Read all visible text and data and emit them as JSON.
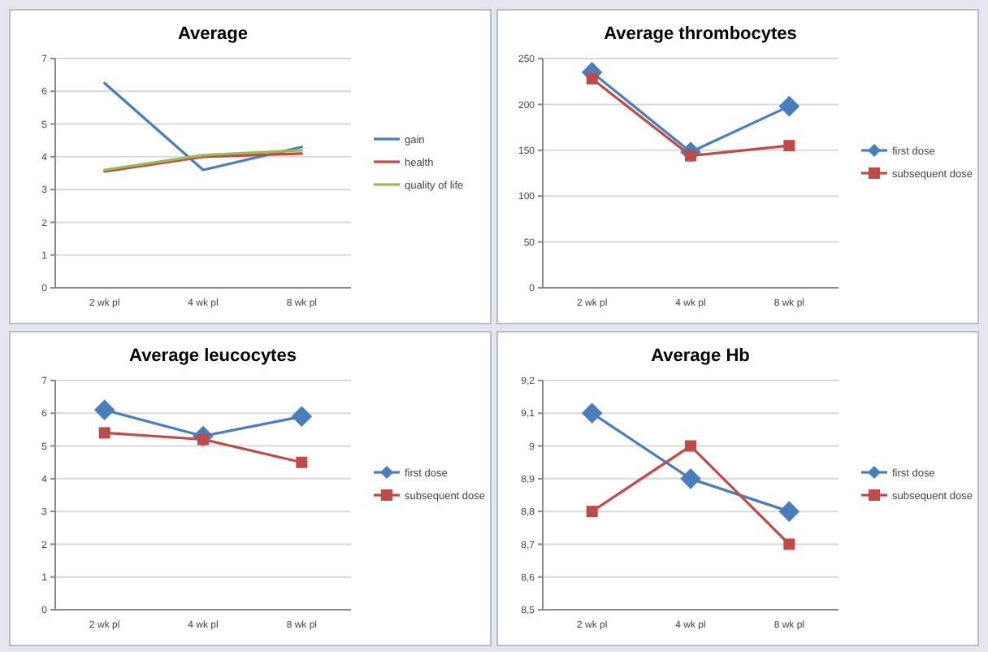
{
  "chart_data": [
    {
      "type": "line",
      "title": "Average",
      "categories": [
        "2 wk pl",
        "4 wk pl",
        "8 wk pl"
      ],
      "ylim": [
        0,
        7
      ],
      "yticks": [
        0,
        1,
        2,
        3,
        4,
        5,
        6,
        7
      ],
      "grid": "y",
      "legend": "right",
      "marker": "none",
      "series": [
        {
          "name": "gain",
          "color": "#4a7ebb",
          "values": [
            6.25,
            3.6,
            4.3
          ]
        },
        {
          "name": "health",
          "color": "#be4b48",
          "values": [
            3.55,
            4.0,
            4.1
          ]
        },
        {
          "name": "quality of life",
          "color": "#98b954",
          "values": [
            3.6,
            4.05,
            4.2
          ]
        }
      ]
    },
    {
      "type": "line",
      "title": "Average thrombocytes",
      "categories": [
        "2 wk pl",
        "4 wk pl",
        "8 wk pl"
      ],
      "ylim": [
        0,
        250
      ],
      "yticks": [
        0,
        50,
        100,
        150,
        200,
        250
      ],
      "grid": "y",
      "legend": "right",
      "series": [
        {
          "name": "first dose",
          "color": "#4a7ebb",
          "values": [
            235,
            148,
            198
          ],
          "marker": "diamond"
        },
        {
          "name": "subsequent dose",
          "color": "#be4b48",
          "values": [
            228,
            144,
            155
          ],
          "marker": "square"
        }
      ]
    },
    {
      "type": "line",
      "title": "Average leucocytes",
      "categories": [
        "2 wk pl",
        "4 wk pl",
        "8 wk pl"
      ],
      "ylim": [
        0,
        7
      ],
      "yticks": [
        0,
        1,
        2,
        3,
        4,
        5,
        6,
        7
      ],
      "grid": "y",
      "legend": "right",
      "series": [
        {
          "name": "first dose",
          "color": "#4a7ebb",
          "values": [
            6.1,
            5.3,
            5.9
          ],
          "marker": "diamond"
        },
        {
          "name": "subsequent dose",
          "color": "#be4b48",
          "values": [
            5.4,
            5.2,
            4.5
          ],
          "marker": "square"
        }
      ]
    },
    {
      "type": "line",
      "title": "Average Hb",
      "categories": [
        "2 wk pl",
        "4 wk pl",
        "8 wk pl"
      ],
      "ylim": [
        8.5,
        9.2
      ],
      "yticks": [
        {
          "value": 8.5,
          "label": "8,5"
        },
        {
          "value": 8.6,
          "label": "8,6"
        },
        {
          "value": 8.7,
          "label": "8,7"
        },
        {
          "value": 8.8,
          "label": "8,8"
        },
        {
          "value": 8.9,
          "label": "8,9"
        },
        9,
        {
          "value": 9.1,
          "label": "9,1"
        },
        {
          "value": 9.2,
          "label": "9,2"
        }
      ],
      "grid": "y",
      "legend": "right",
      "series": [
        {
          "name": "first dose",
          "color": "#4a7ebb",
          "values": [
            9.1,
            8.9,
            8.8
          ],
          "marker": "diamond"
        },
        {
          "name": "subsequent dose",
          "color": "#be4b48",
          "values": [
            8.8,
            9.0,
            8.7
          ],
          "marker": "square"
        }
      ]
    }
  ]
}
